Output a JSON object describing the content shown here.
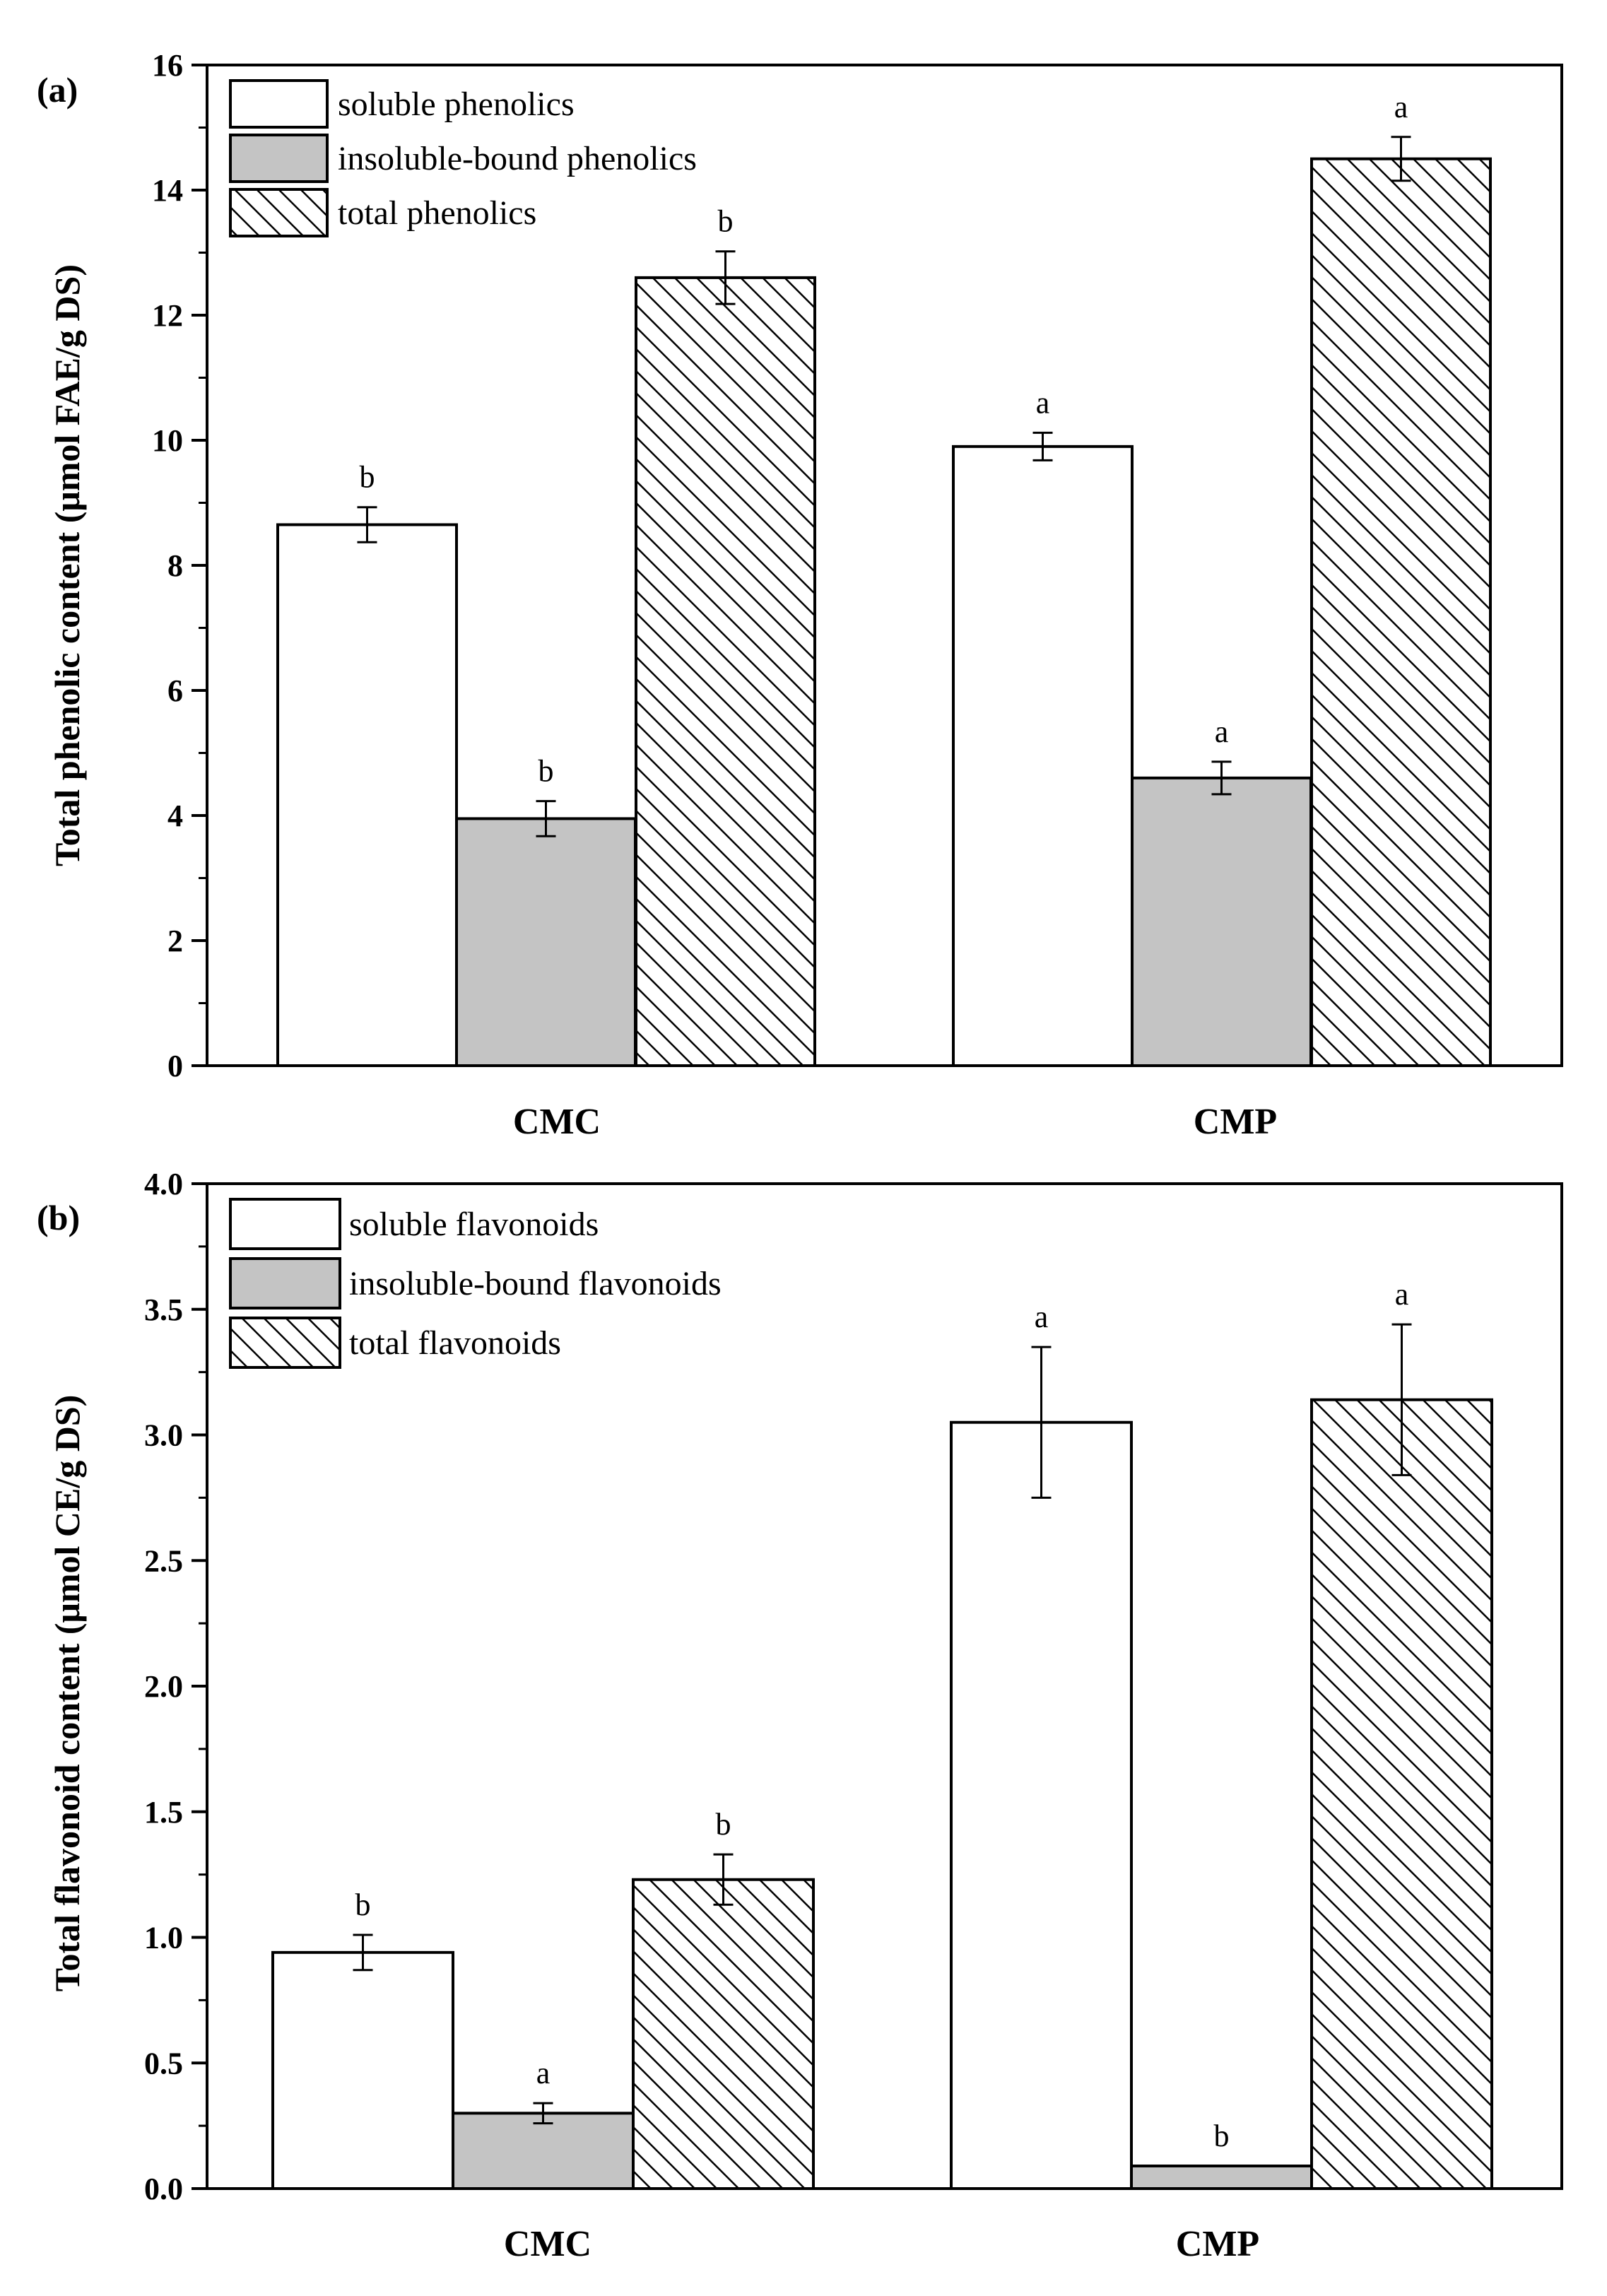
{
  "chart_data": [
    {
      "type": "bar",
      "panel_label": "(a)",
      "categories": [
        "CMC",
        "CMP"
      ],
      "ylabel": "Total phenolic content (μmol FAE/g DS)",
      "ylim": [
        0,
        16
      ],
      "yticks": [
        0,
        2,
        4,
        6,
        8,
        10,
        12,
        14,
        16
      ],
      "ytick_labels": [
        "0",
        "2",
        "4",
        "6",
        "8",
        "10",
        "12",
        "14",
        "16"
      ],
      "legend_position": "top-left",
      "series": [
        {
          "name": "soluble phenolics",
          "fill": "white",
          "values": [
            8.65,
            9.9
          ],
          "errors": [
            0.28,
            0.22
          ],
          "labels": [
            "b",
            "a"
          ]
        },
        {
          "name": "insoluble-bound phenolics",
          "fill": "gray",
          "values": [
            3.95,
            4.6
          ],
          "errors": [
            0.28,
            0.26
          ],
          "labels": [
            "b",
            "a"
          ]
        },
        {
          "name": "total phenolics",
          "fill": "hatch",
          "values": [
            12.6,
            14.5
          ],
          "errors": [
            0.42,
            0.35
          ],
          "labels": [
            "b",
            "a"
          ]
        }
      ]
    },
    {
      "type": "bar",
      "panel_label": "(b)",
      "categories": [
        "CMC",
        "CMP"
      ],
      "ylabel": "Total  flavonoid content (μmol CE/g DS)",
      "ylim": [
        0,
        4
      ],
      "yticks": [
        0,
        0.5,
        1,
        1.5,
        2,
        2.5,
        3,
        3.5,
        4
      ],
      "ytick_labels": [
        "0.0",
        "0.5",
        "1.0",
        "1.5",
        "2.0",
        "2.5",
        "3.0",
        "3.5",
        "4.0"
      ],
      "legend_position": "top-left",
      "series": [
        {
          "name": "soluble flavonoids",
          "fill": "white",
          "values": [
            0.94,
            3.05
          ],
          "errors": [
            0.07,
            0.3
          ],
          "labels": [
            "b",
            "a"
          ]
        },
        {
          "name": "insoluble-bound flavonoids",
          "fill": "gray",
          "values": [
            0.3,
            0.09
          ],
          "errors": [
            0.04,
            0.0
          ],
          "labels": [
            "a",
            "b"
          ]
        },
        {
          "name": "total flavonoids",
          "fill": "hatch",
          "values": [
            1.23,
            3.14
          ],
          "errors": [
            0.1,
            0.3
          ],
          "labels": [
            "b",
            "a"
          ]
        }
      ]
    }
  ],
  "colors": {
    "gray_fill": "#c4c4c4",
    "stroke": "#000000",
    "white_fill": "#ffffff"
  }
}
